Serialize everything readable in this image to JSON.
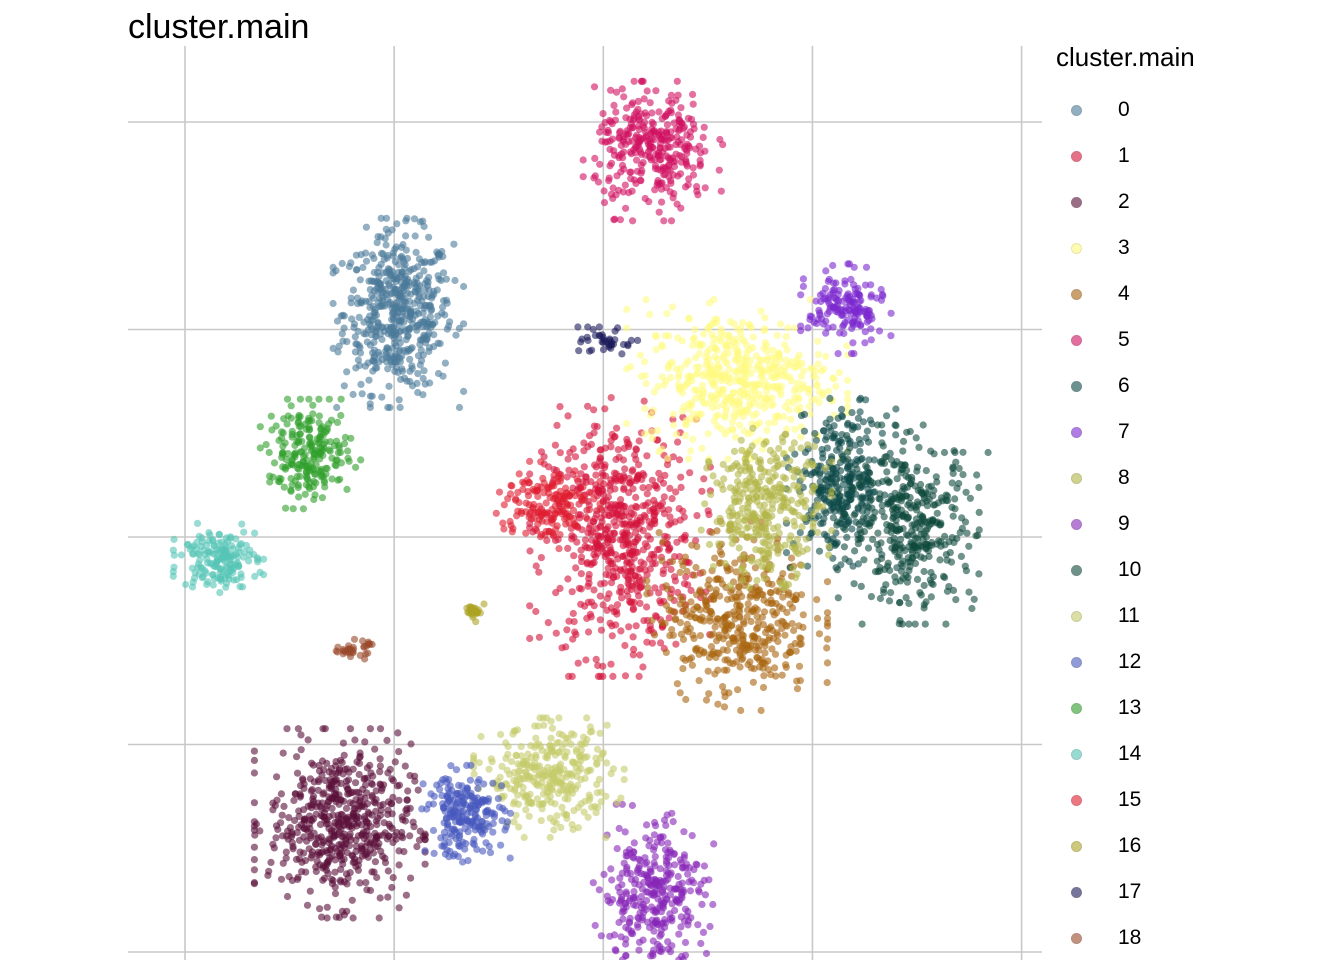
{
  "chart_data": {
    "type": "scatter",
    "title": "cluster.main",
    "legend_title": "cluster.main",
    "legend_position": "right",
    "grid": true,
    "point_alpha": 0.6,
    "xlim": [
      -6,
      16
    ],
    "ylim": [
      -12,
      10
    ],
    "x_gridlines": [
      -5,
      0,
      5,
      10,
      15
    ],
    "y_gridlines": [
      -10,
      -5,
      0,
      5,
      10
    ],
    "clusters": [
      {
        "label": "0",
        "color": "#4B7A99",
        "center": [
          0.1,
          5.4
        ],
        "spread": [
          1.3,
          1.9
        ],
        "count": 520
      },
      {
        "label": "1",
        "color": "#D4133A",
        "center": [
          5.4,
          0.0
        ],
        "spread": [
          1.8,
          2.8
        ],
        "count": 640
      },
      {
        "label": "2",
        "color": "#5A0F38",
        "center": [
          -1.3,
          -6.9
        ],
        "spread": [
          1.7,
          1.9
        ],
        "count": 560
      },
      {
        "label": "3",
        "color": "#FFFA81",
        "center": [
          8.2,
          3.8
        ],
        "spread": [
          2.2,
          1.6
        ],
        "count": 500
      },
      {
        "label": "4",
        "color": "#A8640E",
        "center": [
          8.2,
          -1.9
        ],
        "spread": [
          1.8,
          1.9
        ],
        "count": 430
      },
      {
        "label": "5",
        "color": "#D01060",
        "center": [
          6.2,
          9.3
        ],
        "spread": [
          1.4,
          1.4
        ],
        "count": 330
      },
      {
        "label": "6",
        "color": "#0E4A47",
        "center": [
          10.7,
          1.3
        ],
        "spread": [
          1.1,
          1.7
        ],
        "count": 330
      },
      {
        "label": "7",
        "color": "#7C28CF",
        "center": [
          10.8,
          5.5
        ],
        "spread": [
          0.9,
          0.9
        ],
        "count": 160
      },
      {
        "label": "8",
        "color": "#B2B548",
        "center": [
          8.9,
          0.7
        ],
        "spread": [
          1.3,
          1.6
        ],
        "count": 330
      },
      {
        "label": "9",
        "color": "#8727B8",
        "center": [
          6.2,
          -8.6
        ],
        "spread": [
          1.2,
          1.8
        ],
        "count": 330
      },
      {
        "label": "10",
        "color": "#0F4A3C",
        "center": [
          12.4,
          0.3
        ],
        "spread": [
          1.5,
          2.0
        ],
        "count": 380
      },
      {
        "label": "11",
        "color": "#C4CB6A",
        "center": [
          3.7,
          -5.8
        ],
        "spread": [
          1.5,
          1.2
        ],
        "count": 320
      },
      {
        "label": "12",
        "color": "#4759BE",
        "center": [
          1.7,
          -6.7
        ],
        "spread": [
          0.9,
          1.0
        ],
        "count": 220
      },
      {
        "label": "13",
        "color": "#2E9E2A",
        "center": [
          -2.0,
          2.0
        ],
        "spread": [
          1.0,
          1.1
        ],
        "count": 220
      },
      {
        "label": "14",
        "color": "#55C4B5",
        "center": [
          -4.2,
          -0.5
        ],
        "spread": [
          0.9,
          0.7
        ],
        "count": 170
      },
      {
        "label": "15",
        "color": "#E01C2E",
        "center": [
          3.6,
          0.8
        ],
        "spread": [
          1.1,
          0.9
        ],
        "count": 160
      },
      {
        "label": "16",
        "color": "#ACA424",
        "center": [
          2.0,
          -1.8
        ],
        "spread": [
          0.3,
          0.2
        ],
        "count": 25
      },
      {
        "label": "17",
        "color": "#1D1A5A",
        "center": [
          5.1,
          4.7
        ],
        "spread": [
          0.6,
          0.3
        ],
        "count": 40
      },
      {
        "label": "18",
        "color": "#9A4A2C",
        "center": [
          -1.0,
          -2.7
        ],
        "spread": [
          0.4,
          0.2
        ],
        "count": 35
      }
    ]
  }
}
